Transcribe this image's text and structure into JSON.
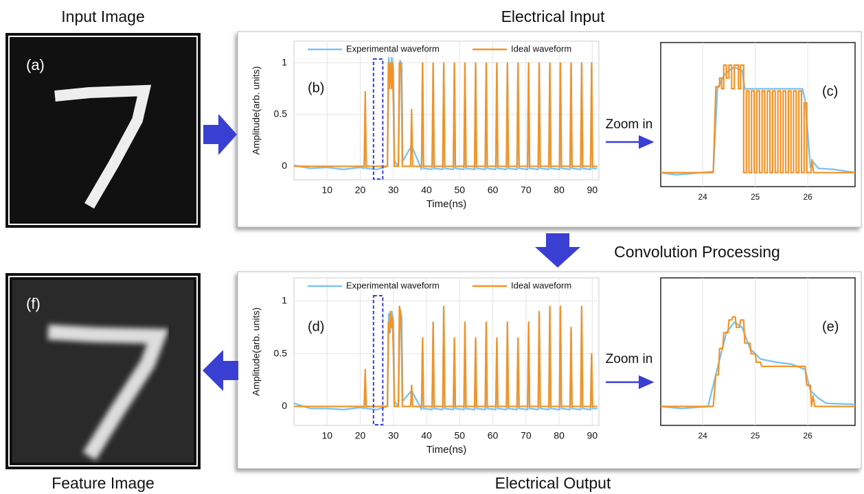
{
  "figure": {
    "input_title": "Input Image",
    "feature_title": "Feature Image",
    "electrical_input": "Electrical Input",
    "electrical_output": "Electrical Output",
    "convolution": "Convolution Processing",
    "input_label": "(a)",
    "feature_label": "(f)",
    "zoom_labels": [
      "Zoom in",
      "Zoom in"
    ]
  },
  "chart_data": [
    {
      "type": "line",
      "label": "(b)",
      "xlabel": "Time(ns)",
      "ylabel": "Amplitude(arb. units)",
      "legend": "top",
      "grid": true,
      "xlim": [
        0,
        92
      ],
      "ylim": [
        -0.13,
        1.21
      ],
      "xticks": [
        10,
        20,
        30,
        40,
        50,
        60,
        70,
        80,
        90
      ],
      "yticks": [
        0,
        0.5,
        1
      ],
      "highlight_xrange": [
        24,
        26.8
      ],
      "series": [
        {
          "name": "Experimental waveform",
          "color": "#7cc4ef",
          "x": [
            0,
            5,
            10,
            15,
            20,
            21.2,
            21.5,
            21.8,
            25,
            28.2,
            28.6,
            29,
            29.5,
            30,
            30.3,
            31.5,
            32,
            32.5,
            32.8,
            35.5,
            38.5,
            38.8,
            39.1,
            41.7,
            42,
            42.3,
            44.9,
            45.2,
            45.5,
            48.1,
            48.4,
            48.7,
            51.3,
            51.6,
            51.9,
            54.5,
            54.8,
            55.1,
            57.7,
            58,
            58.3,
            60.9,
            61.2,
            61.5,
            64.1,
            64.4,
            64.7,
            67.3,
            67.6,
            67.9,
            70.5,
            70.8,
            71.1,
            73.7,
            74,
            74.3,
            76.9,
            77.2,
            77.5,
            80.1,
            80.4,
            80.7,
            83.3,
            83.6,
            83.9,
            86.5,
            86.8,
            87.1,
            89.5,
            89.8,
            90.1,
            91.5
          ],
          "values": [
            0.01,
            -0.02,
            -0.01,
            -0.03,
            -0.01,
            -0.02,
            0.6,
            -0.02,
            -0.03,
            0,
            1.05,
            0.85,
            1.05,
            0.95,
            0.05,
            0,
            1.02,
            1.0,
            0.05,
            0.2,
            -0.03,
            0.98,
            -0.02,
            -0.03,
            0.98,
            -0.02,
            -0.03,
            0.98,
            -0.02,
            -0.03,
            0.98,
            -0.02,
            -0.03,
            0.98,
            -0.02,
            -0.03,
            0.98,
            -0.02,
            -0.03,
            0.98,
            -0.02,
            -0.03,
            0.98,
            -0.02,
            -0.03,
            0.98,
            -0.02,
            -0.03,
            0.98,
            -0.02,
            -0.03,
            0.98,
            -0.02,
            -0.03,
            0.98,
            -0.02,
            -0.03,
            0.98,
            -0.02,
            -0.03,
            0.98,
            -0.02,
            -0.03,
            0.98,
            -0.02,
            -0.03,
            0.98,
            -0.02,
            -0.03,
            0.98,
            -0.02,
            -0.02
          ]
        },
        {
          "name": "Ideal waveform",
          "color": "#f39325",
          "x": [
            0,
            21.2,
            21.5,
            21.8,
            28.2,
            28.5,
            28.8,
            29.1,
            29.4,
            29.7,
            30.0,
            30.3,
            31.5,
            31.8,
            32.1,
            32.4,
            32.7,
            35.2,
            35.5,
            35.8,
            38.5,
            38.8,
            39.1,
            41.7,
            42,
            42.3,
            44.9,
            45.2,
            45.5,
            48.1,
            48.4,
            48.7,
            51.3,
            51.6,
            51.9,
            54.5,
            54.8,
            55.1,
            57.7,
            58,
            58.3,
            60.9,
            61.2,
            61.5,
            64.1,
            64.4,
            64.7,
            67.3,
            67.6,
            67.9,
            70.5,
            70.8,
            71.1,
            73.7,
            74,
            74.3,
            76.9,
            77.2,
            77.5,
            80.1,
            80.4,
            80.7,
            83.3,
            83.6,
            83.9,
            86.5,
            86.8,
            87.1,
            89.5,
            89.8,
            90.1,
            91.5
          ],
          "values": [
            0,
            0,
            0.72,
            0,
            0,
            1,
            0.75,
            1,
            0.75,
            1,
            0.6,
            0,
            0,
            1,
            1,
            0.9,
            0,
            0,
            0.55,
            0,
            0,
            1,
            0,
            0,
            1,
            0,
            0,
            1,
            0,
            0,
            1,
            0,
            0,
            1,
            0,
            0,
            1,
            0,
            0,
            1,
            0,
            0,
            1,
            0,
            0,
            1,
            0,
            0,
            1,
            0,
            0,
            1,
            0,
            0,
            1,
            0,
            0,
            1,
            0,
            0,
            1,
            0,
            0,
            1,
            0,
            0,
            1,
            0,
            0,
            1,
            0,
            0
          ]
        }
      ]
    },
    {
      "type": "line",
      "label": "(c)",
      "grid": true,
      "xlim": [
        23.2,
        26.9
      ],
      "ylim": [
        -0.13,
        1.21
      ],
      "xticks": [
        24,
        25,
        26
      ],
      "series": [
        {
          "color": "#7cc4ef",
          "x": [
            23.2,
            23.5,
            24.2,
            24.28,
            24.4,
            24.5,
            24.6,
            24.75,
            24.8,
            25.0,
            25.5,
            25.9,
            25.95,
            26.05,
            26.1,
            26.2,
            26.5,
            26.9
          ],
          "values": [
            0,
            -0.02,
            0.01,
            0.78,
            0.9,
            0.95,
            0.98,
            0.95,
            0.78,
            0.78,
            0.78,
            0.78,
            0.67,
            0.05,
            0.1,
            0.04,
            0.03,
            0
          ]
        },
        {
          "color": "#f39325",
          "x": [
            23.2,
            24.2,
            24.25,
            24.32,
            24.32,
            24.36,
            24.36,
            24.4,
            24.4,
            24.45,
            24.45,
            24.5,
            24.5,
            24.55,
            24.55,
            24.6,
            24.6,
            24.68,
            24.68,
            24.72,
            24.72,
            24.78,
            24.78,
            24.83,
            24.83,
            24.88,
            24.88,
            24.93,
            24.93,
            24.98,
            24.98,
            25.03,
            25.03,
            25.08,
            25.08,
            25.13,
            25.13,
            25.18,
            25.18,
            25.23,
            25.23,
            25.28,
            25.28,
            25.33,
            25.33,
            25.38,
            25.38,
            25.43,
            25.43,
            25.48,
            25.48,
            25.53,
            25.53,
            25.58,
            25.58,
            25.63,
            25.63,
            25.68,
            25.68,
            25.73,
            25.73,
            25.78,
            25.78,
            25.83,
            25.83,
            25.88,
            25.88,
            25.93,
            25.93,
            25.98,
            25.98,
            26.06,
            26.08,
            26.11,
            26.9
          ],
          "values": [
            0,
            0,
            0.8,
            0.8,
            0.88,
            0.88,
            0.78,
            0.78,
            1,
            1,
            0.88,
            0.88,
            1,
            1,
            0.78,
            0.78,
            1,
            1,
            0.78,
            0.78,
            1,
            1,
            0,
            0,
            0.76,
            0.76,
            0,
            0,
            0.76,
            0.76,
            0,
            0,
            0.76,
            0.76,
            0,
            0,
            0.76,
            0.76,
            0,
            0,
            0.76,
            0.76,
            0,
            0,
            0.76,
            0.76,
            0,
            0,
            0.76,
            0.76,
            0,
            0,
            0.76,
            0.76,
            0,
            0,
            0.76,
            0.76,
            0,
            0,
            0.76,
            0.76,
            0,
            0,
            0.76,
            0.76,
            0,
            0,
            0.65,
            0.65,
            0,
            0,
            0.12,
            0,
            0
          ]
        }
      ]
    },
    {
      "type": "line",
      "label": "(d)",
      "xlabel": "Time(ns)",
      "ylabel": "Amplitude(arb. units)",
      "legend": "top",
      "grid": true,
      "xlim": [
        0,
        92
      ],
      "ylim": [
        -0.18,
        1.22
      ],
      "xticks": [
        10,
        20,
        30,
        40,
        50,
        60,
        70,
        80,
        90
      ],
      "yticks": [
        0,
        0.5,
        1
      ],
      "highlight_xrange": [
        24,
        26.8
      ],
      "series": [
        {
          "name": "Experimental waveform",
          "color": "#7cc4ef",
          "x": [
            0,
            5,
            10,
            15,
            20,
            21.2,
            21.5,
            21.8,
            25,
            28.2,
            28.6,
            29,
            29.5,
            30,
            30.3,
            31.5,
            32,
            32.5,
            32.8,
            35.5,
            38.5,
            38.8,
            39.1,
            41.7,
            42,
            42.3,
            44.9,
            45.2,
            45.5,
            48.1,
            48.4,
            48.7,
            51.3,
            51.6,
            51.9,
            54.5,
            54.8,
            55.1,
            57.7,
            58,
            58.3,
            60.9,
            61.2,
            61.5,
            64.1,
            64.4,
            64.7,
            67.3,
            67.6,
            67.9,
            70.5,
            70.8,
            71.1,
            73.7,
            74,
            74.3,
            76.9,
            77.2,
            77.5,
            80.1,
            80.4,
            80.7,
            83.3,
            83.6,
            83.9,
            86.5,
            86.8,
            87.1,
            89.5,
            89.8,
            90.1,
            91.5
          ],
          "values": [
            0.03,
            -0.02,
            -0.02,
            -0.03,
            -0.01,
            -0.02,
            0.3,
            -0.02,
            -0.03,
            0,
            0.88,
            0.7,
            0.9,
            0.8,
            0.05,
            0,
            0.92,
            0.85,
            0.05,
            0.15,
            -0.03,
            0.63,
            -0.02,
            -0.03,
            0.78,
            -0.02,
            -0.03,
            0.92,
            -0.02,
            -0.03,
            0.63,
            -0.02,
            -0.03,
            0.78,
            -0.02,
            -0.03,
            0.63,
            -0.02,
            -0.03,
            0.78,
            -0.02,
            -0.03,
            0.63,
            -0.02,
            -0.03,
            0.78,
            -0.02,
            -0.03,
            0.63,
            -0.02,
            -0.03,
            0.78,
            -0.02,
            -0.03,
            0.87,
            -0.02,
            -0.03,
            0.92,
            -0.02,
            -0.03,
            0.92,
            -0.02,
            -0.03,
            0.73,
            -0.02,
            -0.03,
            0.92,
            -0.02,
            -0.03,
            0.48,
            -0.02,
            -0.02
          ]
        },
        {
          "name": "Ideal waveform",
          "color": "#f39325",
          "x": [
            0,
            21.2,
            21.5,
            21.8,
            28.2,
            28.5,
            28.8,
            29.1,
            29.4,
            29.7,
            30.0,
            30.3,
            31.5,
            31.8,
            32.1,
            32.4,
            32.7,
            35.2,
            35.5,
            35.8,
            38.5,
            38.8,
            39.1,
            41.7,
            42,
            42.3,
            44.9,
            45.2,
            45.5,
            48.1,
            48.4,
            48.7,
            51.3,
            51.6,
            51.9,
            54.5,
            54.8,
            55.1,
            57.7,
            58,
            58.3,
            60.9,
            61.2,
            61.5,
            64.1,
            64.4,
            64.7,
            67.3,
            67.6,
            67.9,
            70.5,
            70.8,
            71.1,
            73.7,
            74,
            74.3,
            76.9,
            77.2,
            77.5,
            80.1,
            80.4,
            80.7,
            83.3,
            83.6,
            83.9,
            86.5,
            86.8,
            87.1,
            89.5,
            89.8,
            90.1,
            91.5
          ],
          "values": [
            0,
            0,
            0.35,
            0,
            0,
            0.8,
            0.7,
            0.9,
            0.75,
            0.85,
            0.5,
            0,
            0,
            0.95,
            0.9,
            0.7,
            0,
            0,
            0.2,
            0,
            0,
            0.65,
            0,
            0,
            0.8,
            0,
            0,
            0.95,
            0,
            0,
            0.65,
            0,
            0,
            0.8,
            0,
            0,
            0.65,
            0,
            0,
            0.8,
            0,
            0,
            0.65,
            0,
            0,
            0.8,
            0,
            0,
            0.65,
            0,
            0,
            0.8,
            0,
            0,
            0.9,
            0,
            0,
            0.95,
            0,
            0,
            0.95,
            0,
            0,
            0.75,
            0,
            0,
            0.95,
            0,
            0,
            0.5,
            0,
            0
          ]
        }
      ]
    },
    {
      "type": "line",
      "label": "(e)",
      "grid": true,
      "xlim": [
        23.2,
        26.9
      ],
      "ylim": [
        -0.18,
        1.22
      ],
      "xticks": [
        24,
        25,
        26
      ],
      "series": [
        {
          "color": "#7cc4ef",
          "x": [
            23.2,
            23.6,
            24.1,
            24.3,
            24.45,
            24.6,
            24.75,
            24.9,
            25.1,
            25.4,
            25.7,
            25.95,
            26.05,
            26.2,
            26.35,
            26.9
          ],
          "values": [
            0,
            -0.02,
            0,
            0.4,
            0.7,
            0.8,
            0.75,
            0.55,
            0.45,
            0.42,
            0.4,
            0.35,
            0.15,
            0.08,
            0.03,
            0.02
          ]
        },
        {
          "color": "#f39325",
          "x": [
            23.2,
            24.2,
            24.25,
            24.3,
            24.32,
            24.38,
            24.4,
            24.48,
            24.5,
            24.55,
            24.57,
            24.62,
            24.64,
            24.7,
            24.72,
            24.78,
            24.8,
            24.9,
            24.92,
            25.0,
            25.02,
            25.1,
            25.12,
            25.95,
            25.98,
            26.05,
            26.07,
            26.1,
            26.13,
            26.9
          ],
          "values": [
            0,
            0,
            0.3,
            0.3,
            0.55,
            0.55,
            0.7,
            0.7,
            0.82,
            0.82,
            0.85,
            0.85,
            0.75,
            0.75,
            0.82,
            0.82,
            0.6,
            0.6,
            0.5,
            0.5,
            0.42,
            0.42,
            0.38,
            0.38,
            0.2,
            0.2,
            0,
            0.1,
            0,
            0
          ]
        }
      ]
    }
  ]
}
